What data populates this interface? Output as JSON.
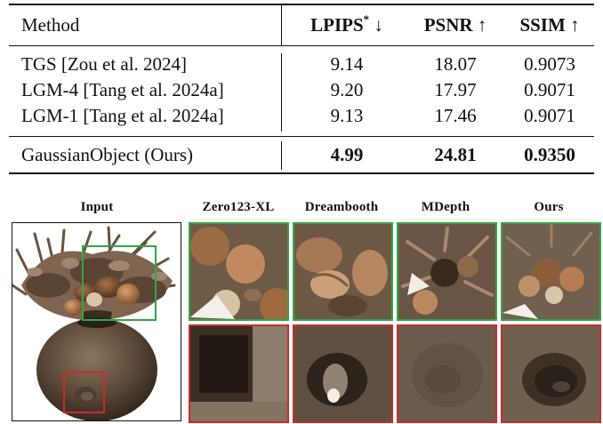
{
  "table": {
    "headers": {
      "method": "Method",
      "lpips_main": "LPIPS",
      "lpips_sup": "*",
      "lpips_arrow": " ↓",
      "psnr": "PSNR ↑",
      "ssim": "SSIM ↑"
    },
    "rows": [
      {
        "method": "TGS [Zou et al. 2024]",
        "lpips": "9.14",
        "psnr": "18.07",
        "ssim": "0.9073"
      },
      {
        "method": "LGM-4 [Tang et al. 2024a]",
        "lpips": "9.20",
        "psnr": "17.97",
        "ssim": "0.9071"
      },
      {
        "method": "LGM-1 [Tang et al. 2024a]",
        "lpips": "9.13",
        "psnr": "17.46",
        "ssim": "0.9071"
      }
    ],
    "ours": {
      "method": "GaussianObject (Ours)",
      "lpips": "4.99",
      "psnr": "24.81",
      "ssim": "0.9350"
    }
  },
  "figure": {
    "columns": {
      "input": "Input",
      "zero123": "Zero123-XL",
      "dreambooth": "Dreambooth",
      "mdepth": "MDepth",
      "ours": "Ours"
    },
    "colors": {
      "green_box": "#30a845",
      "red_box": "#cc2a2a"
    }
  }
}
